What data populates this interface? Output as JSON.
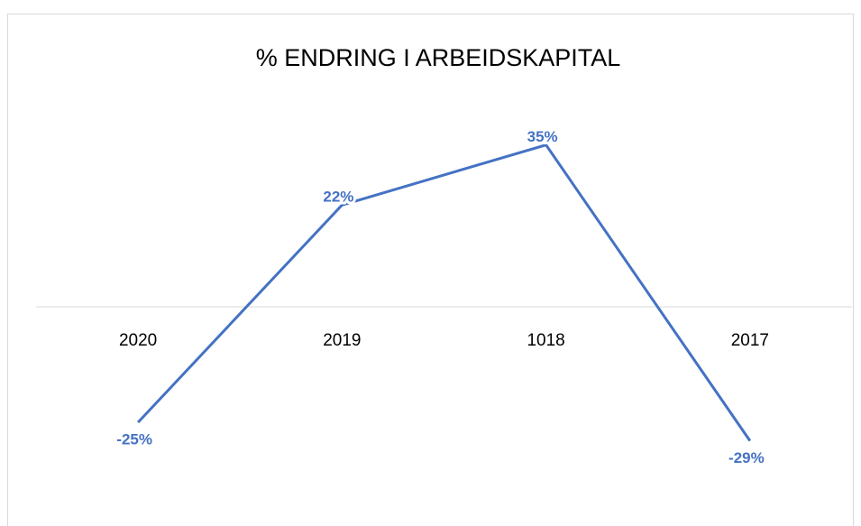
{
  "chart_data": {
    "type": "line",
    "title": "% ENDRING I ARBEIDSKAPITAL",
    "categories": [
      "2020",
      "2019",
      "1018",
      "2017"
    ],
    "values": [
      -25,
      22,
      35,
      -29
    ],
    "value_labels": [
      "-25%",
      "22%",
      "35%",
      "-29%"
    ],
    "color": "#4472c4",
    "ylim": [
      -40,
      40
    ]
  }
}
